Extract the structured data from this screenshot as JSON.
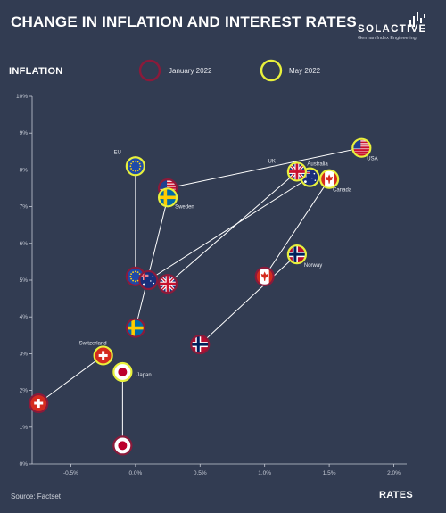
{
  "header": {
    "title": "CHANGE IN INFLATION AND INTEREST RATES",
    "brand_name": "SOLACTIVE",
    "brand_tagline": "German Index Engineering"
  },
  "legend": {
    "jan_label": "January 2022",
    "may_label": "May 2022",
    "jan_color": "#8b1a3a",
    "may_color": "#e8f03c"
  },
  "footer": {
    "source": "Source: Factset"
  },
  "chart_data": {
    "type": "scatter",
    "title": "CHANGE IN INFLATION AND INTEREST RATES",
    "xlabel": "RATES",
    "ylabel": "INFLATION",
    "xlim": [
      -0.8,
      2.1
    ],
    "ylim": [
      0,
      10
    ],
    "x_ticks": [
      "-0.5%",
      "0.0%",
      "0.5%",
      "1.0%",
      "1.5%",
      "2.0%"
    ],
    "x_tick_values": [
      -0.5,
      0,
      0.5,
      1.0,
      1.5,
      2.0
    ],
    "y_ticks": [
      "0%",
      "1%",
      "2%",
      "3%",
      "4%",
      "5%",
      "6%",
      "7%",
      "8%",
      "9%",
      "10%"
    ],
    "y_tick_values": [
      0,
      1,
      2,
      3,
      4,
      5,
      6,
      7,
      8,
      9,
      10
    ],
    "series": [
      {
        "name": "January 2022",
        "points": [
          {
            "country": "USA",
            "flag": "usa",
            "x": 0.25,
            "y": 7.5
          },
          {
            "country": "EU",
            "flag": "eu",
            "x": 0.0,
            "y": 5.1
          },
          {
            "country": "Australia",
            "flag": "australia",
            "x": 0.1,
            "y": 5.0
          },
          {
            "country": "UK",
            "flag": "uk",
            "x": 0.25,
            "y": 4.9
          },
          {
            "country": "Canada",
            "flag": "canada",
            "x": 1.0,
            "y": 5.1
          },
          {
            "country": "Norway",
            "flag": "norway",
            "x": 0.5,
            "y": 3.25
          },
          {
            "country": "Sweden",
            "flag": "sweden",
            "x": 0.0,
            "y": 3.7
          },
          {
            "country": "Switzerland",
            "flag": "switzerland",
            "x": -0.75,
            "y": 1.65
          },
          {
            "country": "Japan",
            "flag": "japan",
            "x": -0.1,
            "y": 0.5
          }
        ]
      },
      {
        "name": "May 2022",
        "points": [
          {
            "country": "USA",
            "flag": "usa",
            "x": 1.75,
            "y": 8.6,
            "label": "USA"
          },
          {
            "country": "EU",
            "flag": "eu",
            "x": 0.0,
            "y": 8.1,
            "label": "EU"
          },
          {
            "country": "Australia",
            "flag": "australia",
            "x": 1.35,
            "y": 7.8,
            "label": "Australia"
          },
          {
            "country": "UK",
            "flag": "uk",
            "x": 1.25,
            "y": 7.95,
            "label": "UK"
          },
          {
            "country": "Canada",
            "flag": "canada",
            "x": 1.5,
            "y": 7.75,
            "label": "Canada"
          },
          {
            "country": "Norway",
            "flag": "norway",
            "x": 1.25,
            "y": 5.7,
            "label": "Norway"
          },
          {
            "country": "Sweden",
            "flag": "sweden",
            "x": 0.25,
            "y": 7.25,
            "label": "Sweden"
          },
          {
            "country": "Switzerland",
            "flag": "switzerland",
            "x": -0.25,
            "y": 2.95,
            "label": "Switzerland"
          },
          {
            "country": "Japan",
            "flag": "japan",
            "x": -0.1,
            "y": 2.5,
            "label": "Japan"
          }
        ]
      }
    ],
    "grid": false,
    "legend_position": "top-center"
  }
}
